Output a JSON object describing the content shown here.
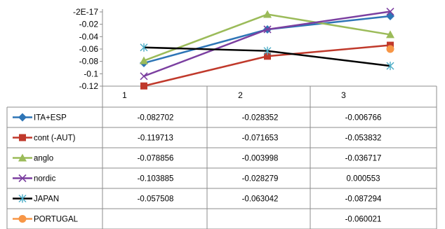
{
  "chart_data": {
    "type": "line",
    "categories": [
      "1",
      "2",
      "3"
    ],
    "y_ticks": [
      "-2E-17",
      "-0.02",
      "-0.04",
      "-0.06",
      "-0.08",
      "-0.1",
      "-0.12"
    ],
    "y_tick_values": [
      0,
      -0.02,
      -0.04,
      -0.06,
      -0.08,
      -0.1,
      -0.12
    ],
    "ylim": [
      -0.12,
      0
    ],
    "grid": false,
    "legend_position": "data-table",
    "series": [
      {
        "name": "ITA+ESP",
        "color": "#2E75B6",
        "marker": "diamond",
        "values": [
          -0.082702,
          -0.028352,
          -0.006766
        ],
        "labels": [
          "-0.082702",
          "-0.028352",
          "-0.006766"
        ]
      },
      {
        "name": "cont (-AUT)",
        "color": "#C0392B",
        "marker": "square",
        "values": [
          -0.119713,
          -0.071653,
          -0.053832
        ],
        "labels": [
          "-0.119713",
          "-0.071653",
          "-0.053832"
        ]
      },
      {
        "name": "anglo",
        "color": "#9BBB59",
        "marker": "triangle",
        "values": [
          -0.078856,
          -0.003998,
          -0.036717
        ],
        "labels": [
          "-0.078856",
          "-0.003998",
          "-0.036717"
        ]
      },
      {
        "name": "nordic",
        "color": "#7B3FA0",
        "marker": "x",
        "values": [
          -0.103885,
          -0.028279,
          0.000553
        ],
        "labels": [
          "-0.103885",
          "-0.028279",
          "0.000553"
        ]
      },
      {
        "name": "JAPAN",
        "color": "#000000",
        "marker": "star",
        "marker_color": "#4BACC6",
        "values": [
          -0.057508,
          -0.063042,
          -0.087294
        ],
        "labels": [
          "-0.057508",
          "-0.063042",
          "-0.087294"
        ]
      },
      {
        "name": "PORTUGAL",
        "color": "#F79646",
        "marker": "circle",
        "values": [
          null,
          null,
          -0.060021
        ],
        "labels": [
          "",
          "",
          "-0.060021"
        ]
      }
    ]
  }
}
